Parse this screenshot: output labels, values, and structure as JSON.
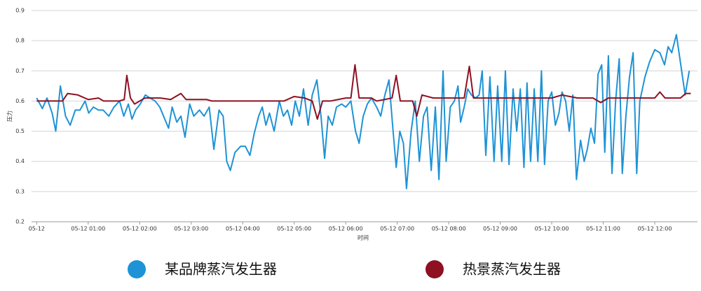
{
  "chart_data": {
    "type": "line",
    "y_label": "压力",
    "x_label": "时间",
    "xlim": [
      -0.1,
      12.83
    ],
    "ylim": [
      0.2,
      0.9
    ],
    "yticks": [
      0.2,
      0.3,
      0.4,
      0.5,
      0.6,
      0.7,
      0.8,
      0.9
    ],
    "xticks": [
      {
        "value": 0,
        "label": "05-12"
      },
      {
        "value": 1,
        "label": "05-12 01:00"
      },
      {
        "value": 2,
        "label": "05-12 02:00"
      },
      {
        "value": 3,
        "label": "05-12 03:00"
      },
      {
        "value": 4,
        "label": "05-12 04:00"
      },
      {
        "value": 5,
        "label": "05-12 05:00"
      },
      {
        "value": 6,
        "label": "05-12 06:00"
      },
      {
        "value": 7,
        "label": "05-12 07:00"
      },
      {
        "value": 8,
        "label": "05-12 08:00"
      },
      {
        "value": 9,
        "label": "05-12 09:00"
      },
      {
        "value": 10,
        "label": "05-12 10:00"
      },
      {
        "value": 11,
        "label": "05-12 11:00"
      },
      {
        "value": 12,
        "label": "05-12 12:00"
      }
    ],
    "grid": true,
    "series": [
      {
        "name": "某品牌蒸汽发生器",
        "color": "#1e93d6",
        "x": [
          0,
          0.11,
          0.2,
          0.3,
          0.37,
          0.46,
          0.56,
          0.65,
          0.75,
          0.84,
          0.94,
          1.01,
          1.1,
          1.2,
          1.29,
          1.4,
          1.5,
          1.61,
          1.69,
          1.78,
          1.85,
          1.92,
          2.01,
          2.11,
          2.2,
          2.3,
          2.39,
          2.56,
          2.63,
          2.72,
          2.8,
          2.88,
          2.97,
          3.05,
          3.16,
          3.25,
          3.35,
          3.44,
          3.54,
          3.62,
          3.69,
          3.76,
          3.85,
          3.96,
          4.05,
          4.14,
          4.22,
          4.31,
          4.38,
          4.45,
          4.52,
          4.61,
          4.71,
          4.79,
          4.87,
          4.95,
          5.02,
          5.1,
          5.18,
          5.27,
          5.35,
          5.44,
          5.52,
          5.59,
          5.66,
          5.74,
          5.82,
          5.92,
          6.0,
          6.1,
          6.19,
          6.26,
          6.34,
          6.42,
          6.5,
          6.6,
          6.68,
          6.76,
          6.84,
          6.91,
          6.98,
          7.05,
          7.12,
          7.18,
          7.27,
          7.35,
          7.43,
          7.51,
          7.58,
          7.66,
          7.74,
          7.81,
          7.89,
          7.95,
          8.03,
          8.11,
          8.18,
          8.23,
          8.3,
          8.37,
          8.44,
          8.52,
          8.59,
          8.65,
          8.72,
          8.8,
          8.88,
          8.95,
          9.03,
          9.1,
          9.17,
          9.25,
          9.32,
          9.39,
          9.46,
          9.52,
          9.59,
          9.66,
          9.73,
          9.8,
          9.86,
          9.93,
          10.0,
          10.07,
          10.14,
          10.2,
          10.27,
          10.34,
          10.41,
          10.48,
          10.56,
          10.63,
          10.69,
          10.76,
          10.83,
          10.9,
          10.97,
          11.03,
          11.1,
          11.17,
          11.24,
          11.31,
          11.37,
          11.44,
          11.51,
          11.58,
          11.65,
          11.71,
          11.81,
          11.9,
          12.0,
          12.1,
          12.19,
          12.26,
          12.33,
          12.42,
          12.48,
          12.59,
          12.67
        ],
        "values": [
          0.61,
          0.575,
          0.61,
          0.56,
          0.5,
          0.65,
          0.55,
          0.52,
          0.57,
          0.57,
          0.6,
          0.56,
          0.58,
          0.57,
          0.57,
          0.55,
          0.58,
          0.6,
          0.55,
          0.59,
          0.54,
          0.57,
          0.59,
          0.62,
          0.61,
          0.6,
          0.58,
          0.51,
          0.58,
          0.53,
          0.55,
          0.48,
          0.59,
          0.55,
          0.57,
          0.55,
          0.58,
          0.44,
          0.57,
          0.55,
          0.4,
          0.37,
          0.43,
          0.45,
          0.45,
          0.42,
          0.49,
          0.55,
          0.58,
          0.52,
          0.56,
          0.5,
          0.6,
          0.55,
          0.57,
          0.52,
          0.6,
          0.55,
          0.64,
          0.52,
          0.62,
          0.67,
          0.55,
          0.41,
          0.55,
          0.52,
          0.58,
          0.59,
          0.58,
          0.6,
          0.5,
          0.46,
          0.55,
          0.59,
          0.61,
          0.58,
          0.55,
          0.62,
          0.67,
          0.52,
          0.38,
          0.5,
          0.46,
          0.31,
          0.5,
          0.6,
          0.4,
          0.55,
          0.58,
          0.37,
          0.58,
          0.34,
          0.7,
          0.4,
          0.58,
          0.6,
          0.65,
          0.53,
          0.58,
          0.64,
          0.62,
          0.61,
          0.62,
          0.7,
          0.42,
          0.68,
          0.4,
          0.65,
          0.4,
          0.7,
          0.39,
          0.64,
          0.5,
          0.64,
          0.38,
          0.66,
          0.4,
          0.64,
          0.4,
          0.7,
          0.39,
          0.6,
          0.63,
          0.52,
          0.56,
          0.63,
          0.6,
          0.5,
          0.62,
          0.34,
          0.47,
          0.4,
          0.44,
          0.51,
          0.46,
          0.69,
          0.72,
          0.43,
          0.75,
          0.36,
          0.6,
          0.74,
          0.36,
          0.55,
          0.68,
          0.76,
          0.36,
          0.6,
          0.68,
          0.73,
          0.77,
          0.76,
          0.72,
          0.78,
          0.76,
          0.82,
          0.75,
          0.62,
          0.7
        ]
      },
      {
        "name": "热景蒸汽发生器",
        "color": "#8e1022",
        "x": [
          0,
          0.5,
          0.6,
          0.8,
          1.0,
          1.2,
          1.3,
          1.6,
          1.7,
          1.75,
          1.82,
          1.9,
          2.1,
          2.4,
          2.6,
          2.8,
          2.9,
          3.3,
          3.4,
          3.6,
          4.4,
          4.8,
          5.0,
          5.2,
          5.35,
          5.45,
          5.55,
          5.7,
          6.0,
          6.1,
          6.18,
          6.26,
          6.5,
          6.6,
          6.9,
          6.98,
          7.06,
          7.2,
          7.3,
          7.38,
          7.48,
          7.7,
          8.0,
          8.3,
          8.4,
          8.48,
          8.8,
          9.5,
          10.0,
          10.2,
          10.5,
          10.8,
          10.95,
          11.1,
          11.7,
          12.0,
          12.1,
          12.2,
          12.5,
          12.6,
          12.7
        ],
        "values": [
          0.6,
          0.6,
          0.625,
          0.62,
          0.605,
          0.61,
          0.6,
          0.6,
          0.605,
          0.685,
          0.61,
          0.59,
          0.61,
          0.61,
          0.605,
          0.625,
          0.605,
          0.605,
          0.6,
          0.6,
          0.6,
          0.6,
          0.615,
          0.61,
          0.6,
          0.54,
          0.6,
          0.6,
          0.61,
          0.61,
          0.72,
          0.61,
          0.61,
          0.6,
          0.61,
          0.685,
          0.6,
          0.6,
          0.6,
          0.55,
          0.62,
          0.61,
          0.61,
          0.61,
          0.715,
          0.61,
          0.61,
          0.61,
          0.61,
          0.62,
          0.61,
          0.61,
          0.595,
          0.61,
          0.61,
          0.61,
          0.63,
          0.61,
          0.61,
          0.625,
          0.625
        ]
      }
    ]
  }
}
